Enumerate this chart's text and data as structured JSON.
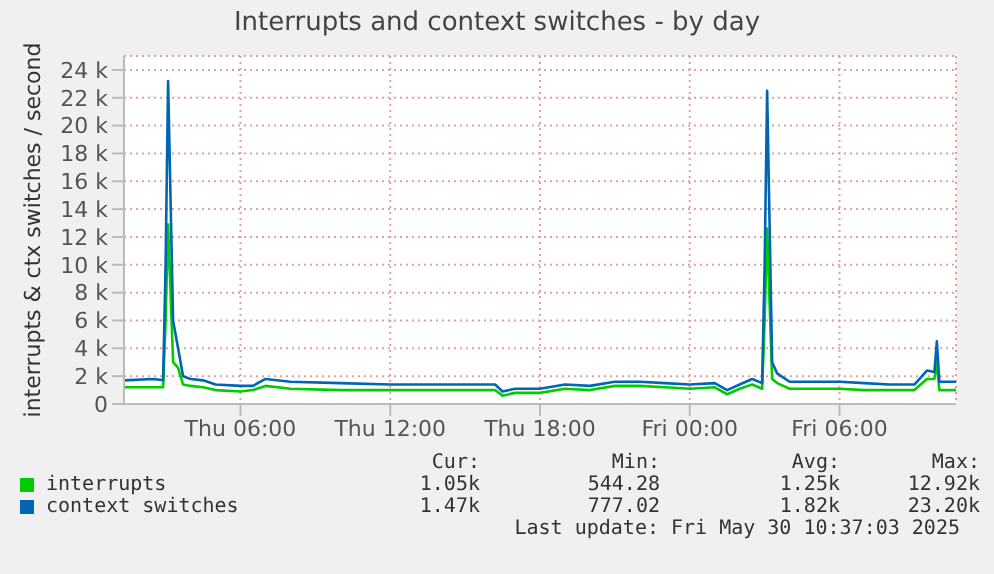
{
  "chart_data": {
    "type": "line",
    "title": "Interrupts and context switches - by day",
    "ylabel": "interrupts & ctx switches / second",
    "x": [
      "2025-05-29T01:20",
      "2025-05-29T02:30",
      "2025-05-29T02:54",
      "2025-05-29T03:00",
      "2025-05-29T03:06",
      "2025-05-29T03:18",
      "2025-05-29T03:30",
      "2025-05-29T03:42",
      "2025-05-29T04:00",
      "2025-05-29T04:30",
      "2025-05-29T05:00",
      "2025-05-29T06:00",
      "2025-05-29T06:30",
      "2025-05-29T07:00",
      "2025-05-29T08:00",
      "2025-05-29T10:00",
      "2025-05-29T12:00",
      "2025-05-29T14:00",
      "2025-05-29T16:12",
      "2025-05-29T16:30",
      "2025-05-29T17:00",
      "2025-05-29T18:00",
      "2025-05-29T19:00",
      "2025-05-29T20:00",
      "2025-05-29T21:00",
      "2025-05-29T22:00",
      "2025-05-29T23:00",
      "2025-05-30T00:00",
      "2025-05-30T01:00",
      "2025-05-30T01:30",
      "2025-05-30T02:00",
      "2025-05-30T02:30",
      "2025-05-30T02:54",
      "2025-05-30T03:00",
      "2025-05-30T03:06",
      "2025-05-30T03:18",
      "2025-05-30T03:30",
      "2025-05-30T04:00",
      "2025-05-30T05:00",
      "2025-05-30T06:00",
      "2025-05-30T07:00",
      "2025-05-30T08:00",
      "2025-05-30T09:00",
      "2025-05-30T09:30",
      "2025-05-30T09:48",
      "2025-05-30T09:54",
      "2025-05-30T10:00",
      "2025-05-30T10:40"
    ],
    "series": [
      {
        "name": "interrupts",
        "color": "#00cc00",
        "values": [
          1200,
          1200,
          1200,
          6000,
          12900,
          3000,
          2600,
          1400,
          1300,
          1200,
          1000,
          900,
          1000,
          1300,
          1100,
          1000,
          1000,
          1000,
          1000,
          600,
          800,
          800,
          1100,
          1000,
          1300,
          1300,
          1200,
          1100,
          1200,
          700,
          1100,
          1400,
          1100,
          6000,
          12600,
          1800,
          1500,
          1100,
          1100,
          1100,
          1000,
          1000,
          1000,
          1800,
          1800,
          3000,
          1000,
          1000
        ]
      },
      {
        "name": "context switches",
        "color": "#0066b3",
        "values": [
          1700,
          1800,
          1700,
          10000,
          23200,
          6000,
          4000,
          2000,
          1800,
          1700,
          1400,
          1300,
          1300,
          1800,
          1600,
          1500,
          1400,
          1400,
          1400,
          900,
          1100,
          1100,
          1400,
          1300,
          1600,
          1600,
          1500,
          1400,
          1500,
          1000,
          1400,
          1800,
          1500,
          10000,
          22500,
          3000,
          2200,
          1600,
          1600,
          1600,
          1500,
          1400,
          1400,
          2400,
          2300,
          4500,
          1600,
          1600
        ]
      }
    ],
    "xlim": [
      "2025-05-29T01:20",
      "2025-05-30T10:40"
    ],
    "xticks": [
      {
        "value": "2025-05-29T06:00",
        "label": "Thu 06:00"
      },
      {
        "value": "2025-05-29T12:00",
        "label": "Thu 12:00"
      },
      {
        "value": "2025-05-29T18:00",
        "label": "Thu 18:00"
      },
      {
        "value": "2025-05-30T00:00",
        "label": "Fri 00:00"
      },
      {
        "value": "2025-05-30T06:00",
        "label": "Fri 06:00"
      }
    ],
    "ylim": [
      0,
      25000
    ],
    "yticks": [
      0,
      {
        "value": 2000,
        "label": "2 k"
      },
      {
        "value": 4000,
        "label": "4 k"
      },
      {
        "value": 6000,
        "label": "6 k"
      },
      {
        "value": 8000,
        "label": "8 k"
      },
      {
        "value": 10000,
        "label": "10 k"
      },
      {
        "value": 12000,
        "label": "12 k"
      },
      {
        "value": 14000,
        "label": "14 k"
      },
      {
        "value": 16000,
        "label": "16 k"
      },
      {
        "value": 18000,
        "label": "18 k"
      },
      {
        "value": 20000,
        "label": "20 k"
      },
      {
        "value": 22000,
        "label": "22 k"
      },
      {
        "value": 24000,
        "label": "24 k"
      }
    ],
    "grid": true,
    "legend": "bottom",
    "annotations": [
      "Cur:",
      "Min:",
      "Avg:",
      "Max:",
      "1.05k",
      "544.28",
      "1.25k",
      "12.92k",
      "1.47k",
      "777.02",
      "1.82k",
      "23.20k",
      "Last update: Fri May 30 10:37:03 2025"
    ]
  }
}
